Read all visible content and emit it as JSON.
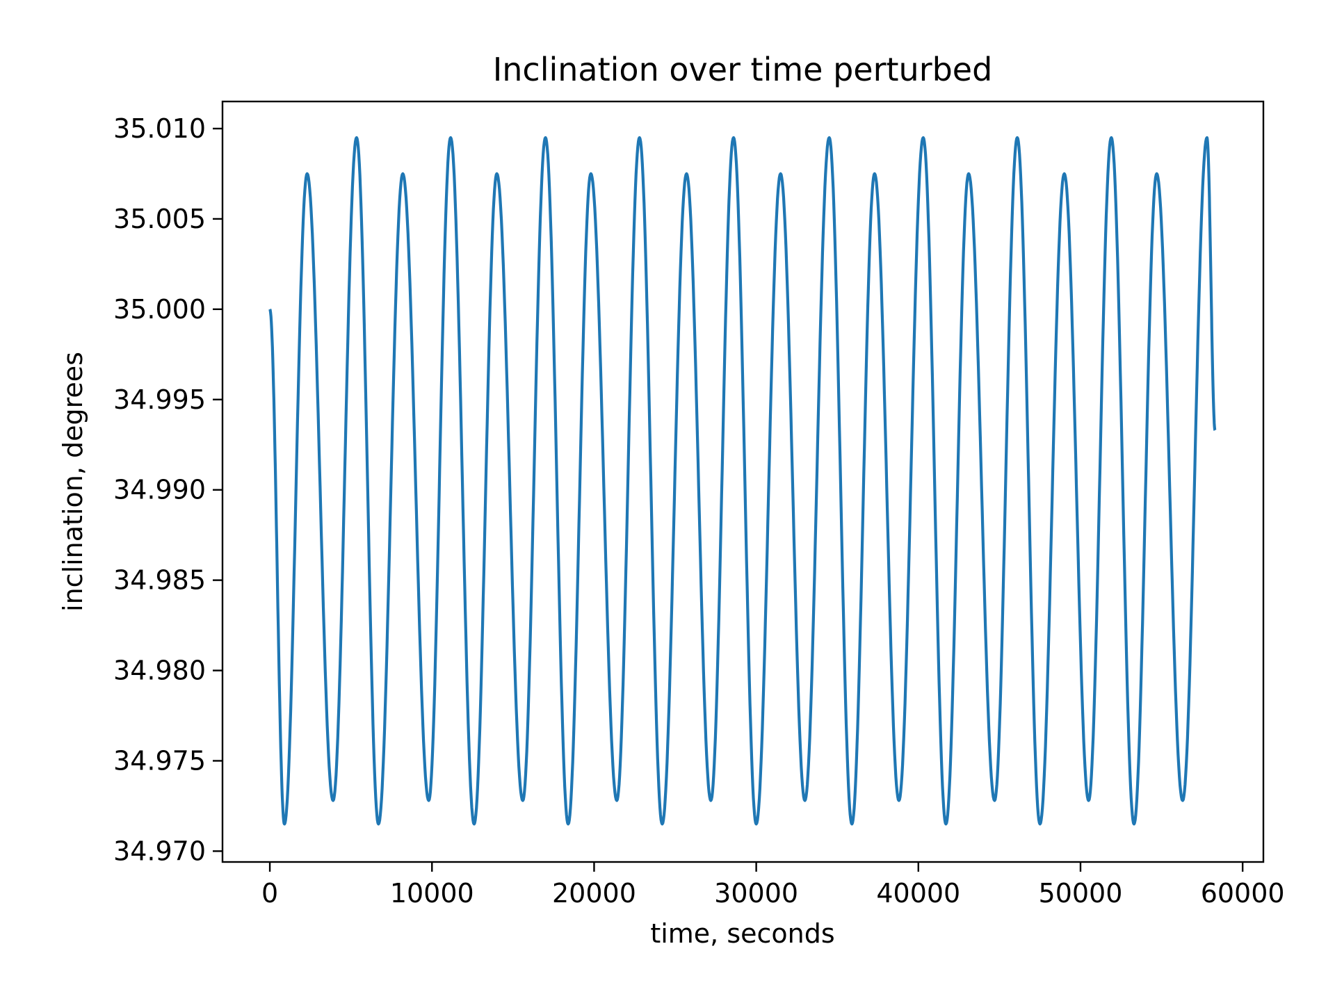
{
  "chart_data": {
    "type": "line",
    "title": "Inclination over time perturbed",
    "xlabel": "time, seconds",
    "ylabel": "inclination, degrees",
    "xlim": [
      -2920,
      61280
    ],
    "ylim": [
      34.9694,
      35.0115
    ],
    "xticks": [
      0,
      10000,
      20000,
      30000,
      40000,
      50000,
      60000
    ],
    "xtick_labels": [
      "0",
      "10000",
      "20000",
      "30000",
      "40000",
      "50000",
      "60000"
    ],
    "yticks": [
      34.97,
      34.975,
      34.98,
      34.985,
      34.99,
      34.995,
      35.0,
      35.005,
      35.01
    ],
    "ytick_labels": [
      "34.970",
      "34.975",
      "34.980",
      "34.985",
      "34.990",
      "34.995",
      "35.000",
      "35.005",
      "35.010"
    ],
    "grid": false,
    "colors": {
      "line": "#1f77b4",
      "axes": "#000000",
      "background": "#ffffff"
    },
    "series": [
      {
        "x": [
          0,
          900,
          2300,
          3900,
          5350,
          6700,
          8200,
          9800,
          11150,
          12600,
          14000,
          15600,
          17000,
          18400,
          19800,
          21400,
          22800,
          24200,
          25700,
          27200,
          28600,
          30000,
          31500,
          33000,
          34500,
          35900,
          37300,
          38800,
          40300,
          41700,
          43100,
          44700,
          46100,
          47500,
          49000,
          50500,
          51900,
          53300,
          54700,
          56300,
          57800,
          58300
        ],
        "values": [
          35.0,
          34.9715,
          35.0075,
          34.9728,
          35.0095,
          34.9715,
          35.0075,
          34.9728,
          35.0095,
          34.9715,
          35.0075,
          34.9728,
          35.0095,
          34.9715,
          35.0075,
          34.9728,
          35.0095,
          34.9715,
          35.0075,
          34.9728,
          35.0095,
          34.9715,
          35.0075,
          34.9728,
          35.0095,
          34.9715,
          35.0075,
          34.9728,
          35.0095,
          34.9715,
          35.0075,
          34.9728,
          35.0095,
          34.9715,
          35.0075,
          34.9728,
          35.0095,
          34.9715,
          35.0075,
          34.9728,
          35.0095,
          34.9933
        ]
      }
    ]
  }
}
